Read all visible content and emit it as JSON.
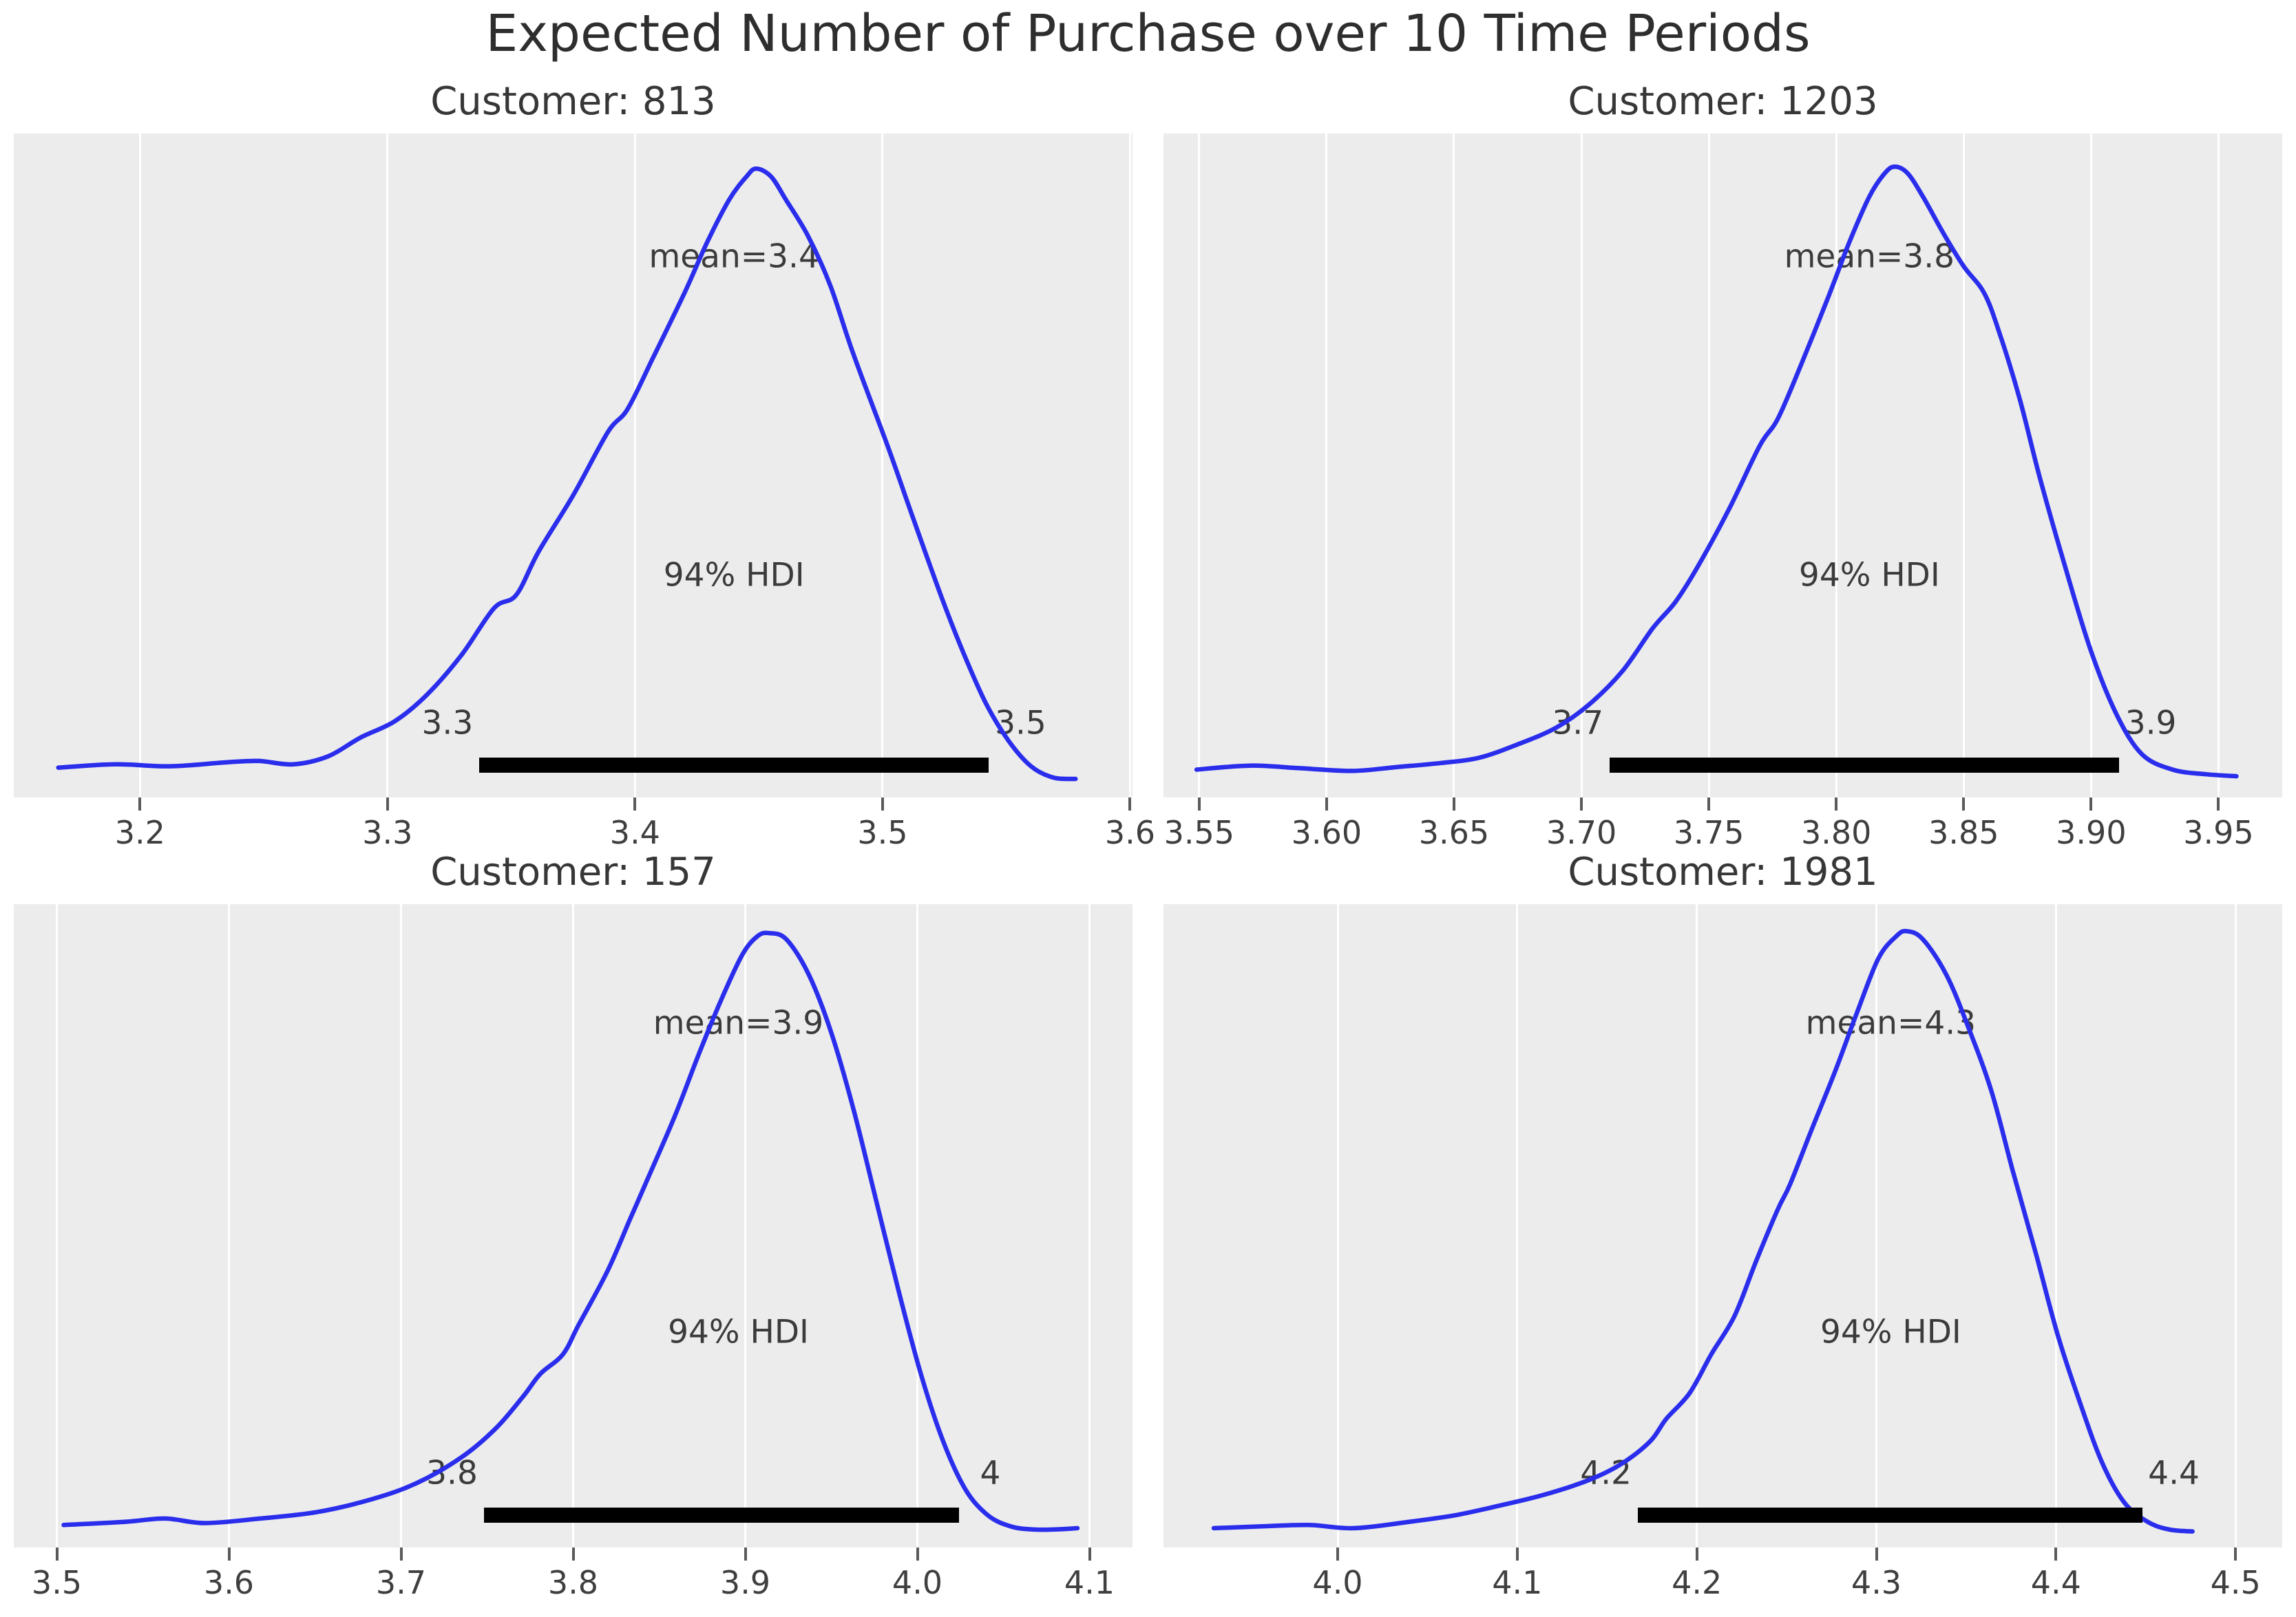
{
  "figure": {
    "title": "Expected Number of Purchase over 10 Time Periods"
  },
  "style_colors": {
    "curve": "#2a2eec",
    "hdi_line": "#000000",
    "plot_background": "#ececec",
    "gridline": "#ffffff"
  },
  "chart_data": [
    {
      "type": "kde",
      "title": "Customer: 813",
      "customer_id": "813",
      "mean": 3.4,
      "labels": {
        "mean": "mean=3.4",
        "hdi": "94% HDI",
        "hdi_lower": "3.3",
        "hdi_upper": "3.5"
      },
      "x_range": [
        3.149,
        3.601
      ],
      "x_ticks": [
        "3.2",
        "3.3",
        "3.4",
        "3.5",
        "3.6"
      ],
      "hdi_interval": [
        3.337,
        3.543
      ],
      "annot_x": 3.44,
      "curve": {
        "x": [
          3.167,
          3.19,
          3.212,
          3.235,
          3.248,
          3.262,
          3.276,
          3.289,
          3.303,
          3.316,
          3.33,
          3.343,
          3.352,
          3.361,
          3.375,
          3.389,
          3.397,
          3.407,
          3.42,
          3.429,
          3.438,
          3.445,
          3.449,
          3.455,
          3.461,
          3.47,
          3.479,
          3.488,
          3.502,
          3.511,
          3.524,
          3.533,
          3.542,
          3.551,
          3.56,
          3.569,
          3.578
        ],
        "h": [
          0.045,
          0.05,
          0.047,
          0.053,
          0.055,
          0.05,
          0.062,
          0.09,
          0.115,
          0.155,
          0.215,
          0.285,
          0.305,
          0.37,
          0.455,
          0.55,
          0.585,
          0.66,
          0.76,
          0.835,
          0.9,
          0.935,
          0.947,
          0.935,
          0.9,
          0.845,
          0.77,
          0.67,
          0.53,
          0.435,
          0.3,
          0.215,
          0.14,
          0.085,
          0.047,
          0.03,
          0.028
        ]
      }
    },
    {
      "type": "kde",
      "title": "Customer: 1203",
      "customer_id": "1203",
      "mean": 3.8,
      "labels": {
        "mean": "mean=3.8",
        "hdi": "94% HDI",
        "hdi_lower": "3.7",
        "hdi_upper": "3.9"
      },
      "x_range": [
        3.536,
        3.975
      ],
      "x_ticks": [
        "3.55",
        "3.60",
        "3.65",
        "3.70",
        "3.75",
        "3.80",
        "3.85",
        "3.90",
        "3.95"
      ],
      "hdi_interval": [
        3.711,
        3.911
      ],
      "annot_x": 3.813,
      "curve": {
        "x": [
          3.549,
          3.57,
          3.59,
          3.61,
          3.628,
          3.645,
          3.66,
          3.675,
          3.69,
          3.703,
          3.716,
          3.728,
          3.737,
          3.746,
          3.758,
          3.77,
          3.777,
          3.786,
          3.797,
          3.805,
          3.813,
          3.819,
          3.823,
          3.828,
          3.834,
          3.842,
          3.85,
          3.858,
          3.864,
          3.872,
          3.88,
          3.89,
          3.9,
          3.91,
          3.92,
          3.932,
          3.945,
          3.957
        ],
        "h": [
          0.042,
          0.048,
          0.044,
          0.04,
          0.046,
          0.052,
          0.06,
          0.08,
          0.105,
          0.14,
          0.19,
          0.255,
          0.295,
          0.35,
          0.435,
          0.53,
          0.57,
          0.65,
          0.755,
          0.835,
          0.905,
          0.94,
          0.95,
          0.94,
          0.905,
          0.85,
          0.8,
          0.76,
          0.7,
          0.6,
          0.48,
          0.345,
          0.22,
          0.125,
          0.065,
          0.042,
          0.035,
          0.032
        ]
      }
    },
    {
      "type": "kde",
      "title": "Customer: 157",
      "customer_id": "157",
      "mean": 3.9,
      "labels": {
        "mean": "mean=3.9",
        "hdi": "94% HDI",
        "hdi_lower": "3.8",
        "hdi_upper": "4"
      },
      "x_range": [
        3.475,
        4.125
      ],
      "x_ticks": [
        "3.5",
        "3.6",
        "3.7",
        "3.8",
        "3.9",
        "4.0",
        "4.1"
      ],
      "hdi_interval": [
        3.748,
        4.024
      ],
      "annot_x": 3.896,
      "curve": {
        "x": [
          3.504,
          3.54,
          3.563,
          3.586,
          3.618,
          3.651,
          3.683,
          3.709,
          3.735,
          3.755,
          3.771,
          3.781,
          3.794,
          3.803,
          3.82,
          3.833,
          3.842,
          3.859,
          3.872,
          3.885,
          3.898,
          3.907,
          3.914,
          3.924,
          3.937,
          3.95,
          3.963,
          3.976,
          3.989,
          4.002,
          4.015,
          4.028,
          4.041,
          4.054,
          4.067,
          4.08,
          4.093
        ],
        "h": [
          0.035,
          0.04,
          0.045,
          0.038,
          0.045,
          0.055,
          0.075,
          0.1,
          0.14,
          0.185,
          0.235,
          0.27,
          0.3,
          0.345,
          0.43,
          0.51,
          0.565,
          0.67,
          0.76,
          0.845,
          0.92,
          0.95,
          0.955,
          0.945,
          0.89,
          0.8,
          0.68,
          0.54,
          0.4,
          0.27,
          0.165,
          0.09,
          0.05,
          0.033,
          0.028,
          0.028,
          0.03
        ]
      }
    },
    {
      "type": "kde",
      "title": "Customer: 1981",
      "customer_id": "1981",
      "mean": 4.3,
      "labels": {
        "mean": "mean=4.3",
        "hdi": "94% HDI",
        "hdi_lower": "4.2",
        "hdi_upper": "4.4"
      },
      "x_range": [
        3.903,
        4.526
      ],
      "x_ticks": [
        "4.0",
        "4.1",
        "4.2",
        "4.3",
        "4.4",
        "4.5"
      ],
      "hdi_interval": [
        4.167,
        4.448
      ],
      "annot_x": 4.308,
      "curve": {
        "x": [
          3.931,
          3.959,
          3.984,
          4.009,
          4.04,
          4.065,
          4.09,
          4.115,
          4.14,
          4.158,
          4.174,
          4.183,
          4.196,
          4.208,
          4.221,
          4.233,
          4.245,
          4.252,
          4.264,
          4.277,
          4.289,
          4.301,
          4.311,
          4.317,
          4.326,
          4.339,
          4.351,
          4.364,
          4.376,
          4.389,
          4.401,
          4.414,
          4.426,
          4.438,
          4.451,
          4.463,
          4.476
        ],
        "h": [
          0.03,
          0.033,
          0.035,
          0.03,
          0.04,
          0.05,
          0.065,
          0.082,
          0.105,
          0.13,
          0.165,
          0.2,
          0.24,
          0.3,
          0.36,
          0.445,
          0.525,
          0.565,
          0.65,
          0.74,
          0.83,
          0.915,
          0.95,
          0.958,
          0.945,
          0.89,
          0.81,
          0.71,
          0.585,
          0.455,
          0.33,
          0.22,
          0.13,
          0.07,
          0.04,
          0.028,
          0.025
        ]
      }
    }
  ]
}
